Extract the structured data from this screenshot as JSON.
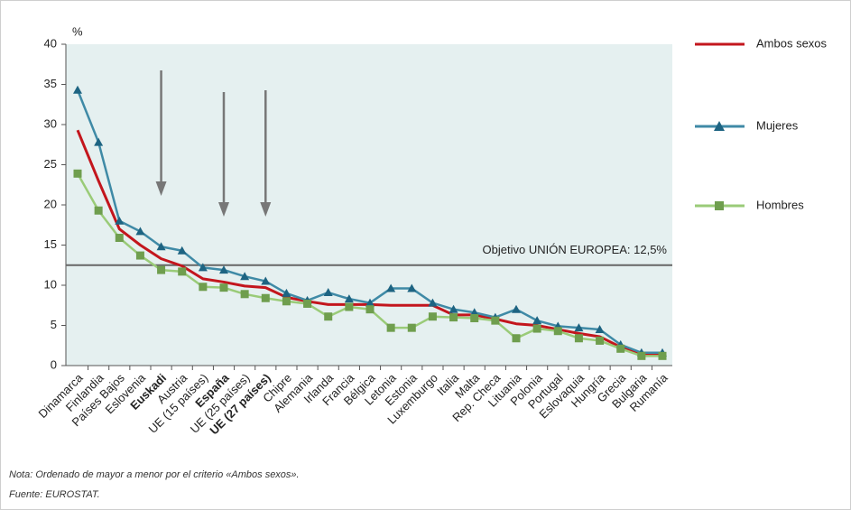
{
  "chart_data": {
    "type": "line",
    "y_label": "%",
    "categories": [
      "Dinamarca",
      "Finlandia",
      "Países Bajos",
      "Eslovenia",
      "Euskadi",
      "Austria",
      "UE (15 países)",
      "España",
      "UE (25 países)",
      "UE (27 países)",
      "Chipre",
      "Alemania",
      "Irlanda",
      "Francia",
      "Bélgica",
      "Letonia",
      "Estonia",
      "Luxemburgo",
      "Italia",
      "Malta",
      "Rep. Checa",
      "Lituania",
      "Polonia",
      "Portugal",
      "Eslovaquia",
      "Hungría",
      "Grecia",
      "Bulgaria",
      "Rumanía"
    ],
    "highlight_indices": [
      4,
      7,
      9
    ],
    "series": [
      {
        "name": "Ambos sexos",
        "color": "#c3161d",
        "marker": "none",
        "values": [
          29.3,
          23.0,
          17.0,
          15.0,
          13.3,
          12.4,
          10.8,
          10.4,
          9.9,
          9.7,
          8.5,
          8.0,
          7.6,
          7.6,
          7.6,
          7.5,
          7.5,
          7.5,
          6.3,
          6.3,
          5.8,
          5.2,
          5.0,
          4.5,
          4.0,
          3.6,
          2.3,
          1.3,
          1.3
        ]
      },
      {
        "name": "Mujeres",
        "color": "#3f8aa6",
        "marker": "triangle",
        "marker_color": "#1e6482",
        "values": [
          34.3,
          27.8,
          18.0,
          16.7,
          14.8,
          14.3,
          12.2,
          11.9,
          11.1,
          10.5,
          9.0,
          8.1,
          9.1,
          8.3,
          7.8,
          9.6,
          9.6,
          7.8,
          7.0,
          6.6,
          6.0,
          7.0,
          5.6,
          4.9,
          4.7,
          4.5,
          2.6,
          1.6,
          1.6
        ]
      },
      {
        "name": "Hombres",
        "color": "#9acb78",
        "marker": "square",
        "marker_color": "#6f9e4e",
        "values": [
          23.9,
          19.3,
          15.9,
          13.7,
          11.9,
          11.7,
          9.8,
          9.7,
          8.9,
          8.4,
          8.0,
          7.7,
          6.1,
          7.3,
          7.0,
          4.7,
          4.7,
          6.1,
          6.0,
          5.9,
          5.6,
          3.4,
          4.6,
          4.3,
          3.4,
          3.1,
          2.1,
          1.2,
          1.2
        ]
      }
    ],
    "target": {
      "value": 12.5,
      "label": "Objetivo UNIÓN EUROPEA: 12,5%"
    },
    "ylim": [
      0,
      40
    ],
    "yticks": [
      0,
      5,
      10,
      15,
      20,
      25,
      30,
      35,
      40
    ],
    "notes": [
      "Nota: Ordenado de mayor a menor por el criterio «Ambos sexos».",
      "Fuente: EUROSTAT."
    ]
  }
}
